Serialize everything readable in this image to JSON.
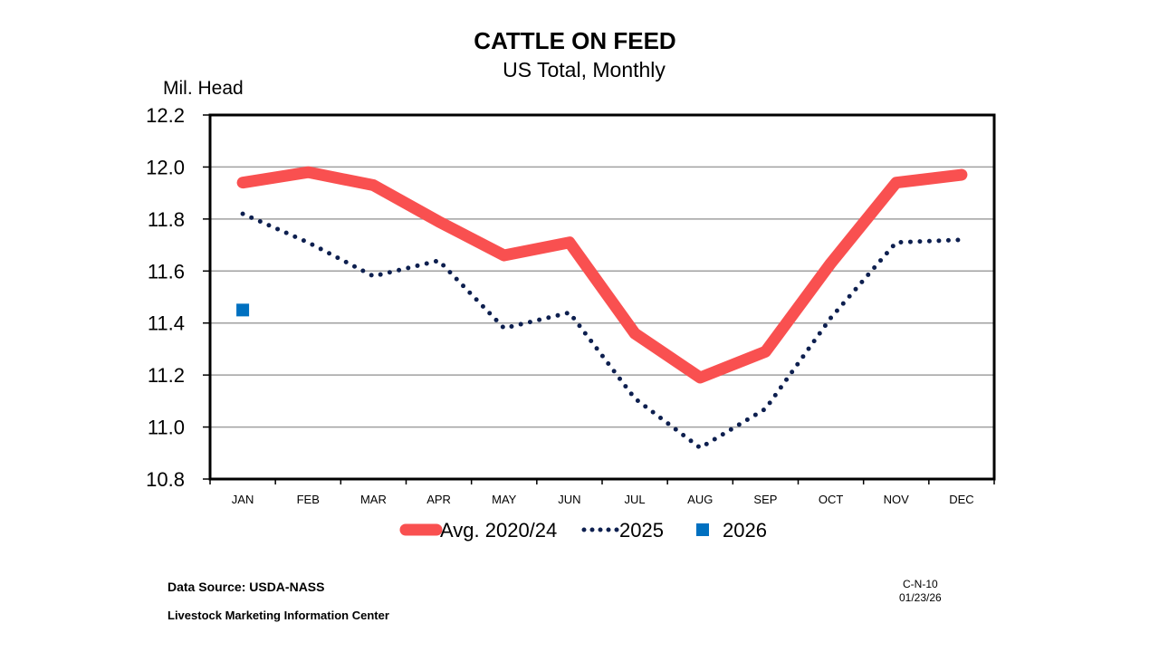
{
  "chart_data": {
    "type": "line",
    "title": "CATTLE ON FEED",
    "subtitle": "US Total, Monthly",
    "ylabel": "Mil. Head",
    "xlabel": "",
    "ylim": [
      10.8,
      12.2
    ],
    "yticks": [
      "12.2",
      "12.0",
      "11.8",
      "11.6",
      "11.4",
      "11.2",
      "11.0",
      "10.8"
    ],
    "grid": true,
    "legend_position": "bottom",
    "categories": [
      "JAN",
      "FEB",
      "MAR",
      "APR",
      "MAY",
      "JUN",
      "JUL",
      "AUG",
      "SEP",
      "OCT",
      "NOV",
      "DEC"
    ],
    "series": [
      {
        "name": "Avg. 2020/24",
        "color": "#f95050",
        "style": "solid-thick",
        "values": [
          11.94,
          11.98,
          11.93,
          11.79,
          11.66,
          11.71,
          11.36,
          11.19,
          11.29,
          11.63,
          11.94,
          11.97
        ]
      },
      {
        "name": "2025",
        "color": "#0d1f4f",
        "style": "dotted",
        "values": [
          11.82,
          11.71,
          11.58,
          11.64,
          11.38,
          11.44,
          11.11,
          10.92,
          11.07,
          11.42,
          11.71,
          11.72
        ]
      },
      {
        "name": "2026",
        "color": "#0070c0",
        "style": "marker-square",
        "values": [
          11.45,
          null,
          null,
          null,
          null,
          null,
          null,
          null,
          null,
          null,
          null,
          null
        ]
      }
    ]
  },
  "footer": {
    "source": "Data Source:  USDA-NASS",
    "org": "Livestock Marketing Information Center",
    "chart_code": "C-N-10",
    "date": "01/23/26"
  }
}
